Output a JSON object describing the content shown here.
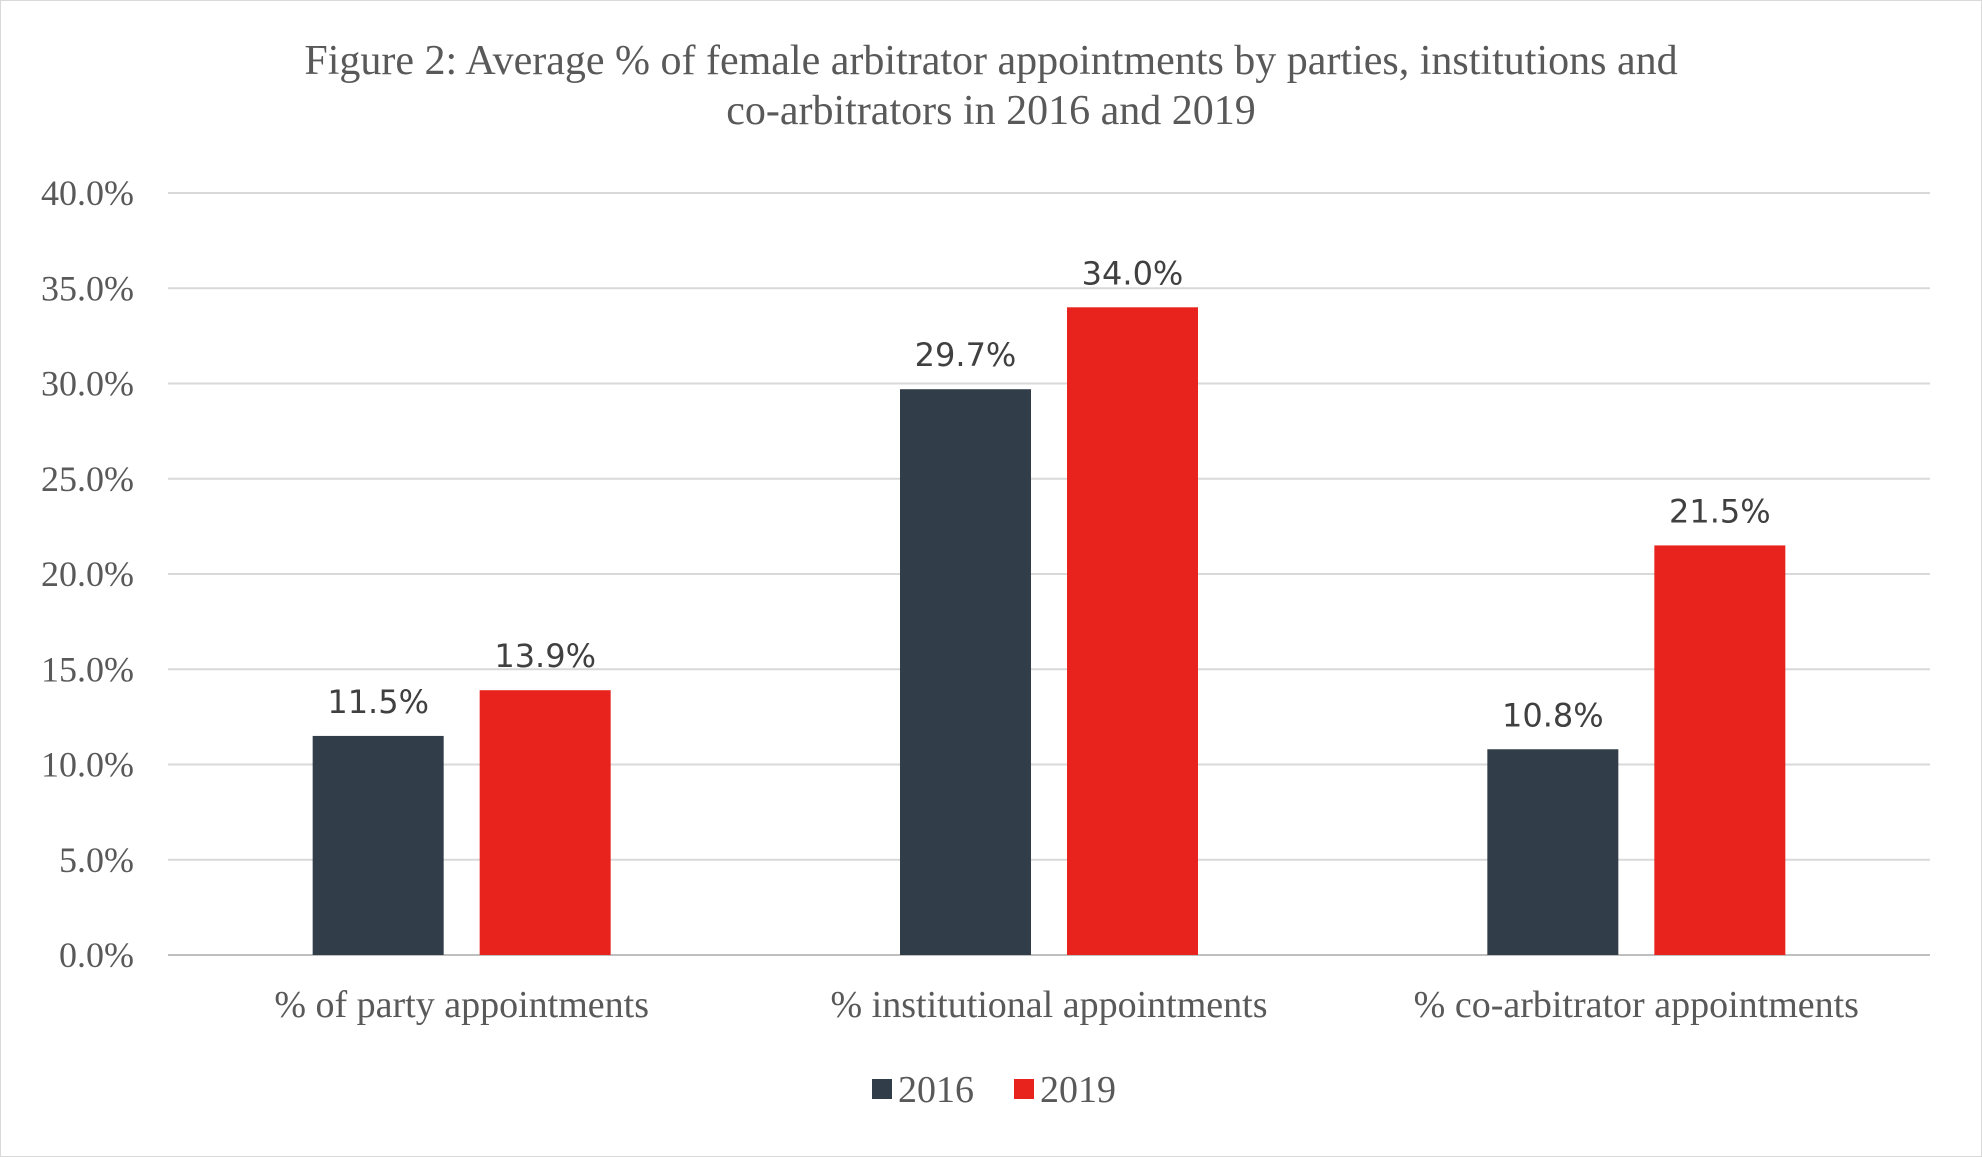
{
  "chart_data": {
    "type": "bar",
    "title_lines": [
      "Figure 2: Average % of female arbitrator appointments by parties, institutions and",
      "co-arbitrators in 2016 and 2019"
    ],
    "categories": [
      "% of party appointments",
      "% institutional appointments",
      "% co-arbitrator appointments"
    ],
    "series": [
      {
        "name": "2016",
        "color": "#313d48",
        "values": [
          11.5,
          29.7,
          10.8
        ],
        "labels": [
          "11.5%",
          "29.7%",
          "10.8%"
        ]
      },
      {
        "name": "2019",
        "color": "#e8231d",
        "values": [
          13.9,
          34.0,
          21.5
        ],
        "labels": [
          "13.9%",
          "34.0%",
          "21.5%"
        ]
      }
    ],
    "ylim": [
      0,
      40
    ],
    "yticks": [
      0,
      5,
      10,
      15,
      20,
      25,
      30,
      35,
      40
    ],
    "ytick_labels": [
      "0.0%",
      "5.0%",
      "10.0%",
      "15.0%",
      "20.0%",
      "25.0%",
      "30.0%",
      "35.0%",
      "40.0%"
    ],
    "grid": true,
    "legend_position": "bottom"
  }
}
